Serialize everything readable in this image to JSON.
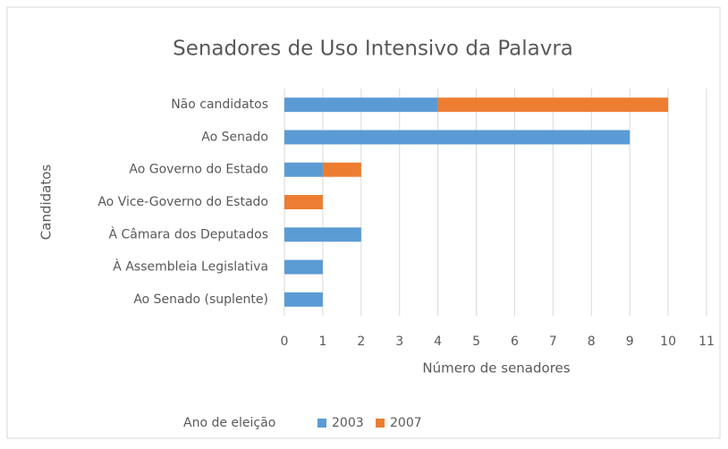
{
  "chart_data": {
    "type": "stacked_bar_horizontal",
    "title": "Senadores de Uso Intensivo da Palavra",
    "x_label": "Número de senadores",
    "y_label": "Candidatos",
    "legend_title": "Ano de eleição",
    "categories": [
      "Não candidatos",
      "Ao Senado",
      "Ao Governo do Estado",
      "Ao Vice-Governo do Estado",
      "À Câmara dos Deputados",
      "À Assembleia Legislativa",
      "Ao Senado (suplente)"
    ],
    "series": [
      {
        "name": "2003",
        "color": "#5b9bd5",
        "values": [
          4,
          9,
          1,
          0,
          2,
          1,
          1
        ]
      },
      {
        "name": "2007",
        "color": "#ed7d31",
        "values": [
          6,
          0,
          1,
          1,
          0,
          0,
          0
        ]
      }
    ],
    "xlim": [
      0,
      11
    ],
    "xticks": [
      0,
      1,
      2,
      3,
      4,
      5,
      6,
      7,
      8,
      9,
      10,
      11
    ],
    "grid": true,
    "legend": "bottom"
  }
}
